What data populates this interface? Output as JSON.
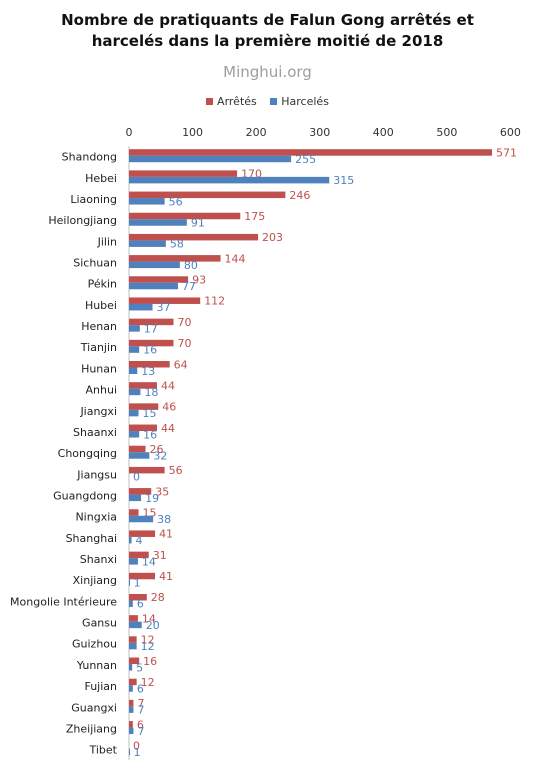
{
  "chart_data": {
    "type": "bar",
    "orientation": "horizontal",
    "title_line1": "Nombre de pratiquants de Falun Gong arrêtés et",
    "title_line2": "harcelés dans la première moitié de 2018",
    "source_label": "Minghui.org",
    "legend_position": "top",
    "x_axis_position": "top",
    "xlim": [
      0,
      600
    ],
    "xticks": [
      0,
      100,
      200,
      300,
      400,
      500,
      600
    ],
    "grid": false,
    "categories": [
      "Shandong",
      "Hebei",
      "Liaoning",
      "Heilongjiang",
      "Jilin",
      "Sichuan",
      "Pékin",
      "Hubei",
      "Henan",
      "Tianjin",
      "Hunan",
      "Anhui",
      "Jiangxi",
      "Shaanxi",
      "Chongqing",
      "Jiangsu",
      "Guangdong",
      "Ningxia",
      "Shanghai",
      "Shanxi",
      "Xinjiang",
      "Mongolie Intérieure",
      "Gansu",
      "Guizhou",
      "Yunnan",
      "Fujian",
      "Guangxi",
      "Zheijiang",
      "Tibet"
    ],
    "series": [
      {
        "name": "Arrêtés",
        "color": "#c0504d",
        "values": [
          571,
          170,
          246,
          175,
          203,
          144,
          93,
          112,
          70,
          70,
          64,
          44,
          46,
          44,
          26,
          56,
          35,
          15,
          41,
          31,
          41,
          28,
          14,
          12,
          16,
          12,
          7,
          6,
          0
        ]
      },
      {
        "name": "Harcelés",
        "color": "#4f81bd",
        "values": [
          255,
          315,
          56,
          91,
          58,
          80,
          77,
          37,
          17,
          16,
          13,
          18,
          15,
          16,
          32,
          0,
          19,
          38,
          4,
          14,
          1,
          6,
          20,
          12,
          5,
          6,
          7,
          7,
          1
        ]
      }
    ]
  }
}
